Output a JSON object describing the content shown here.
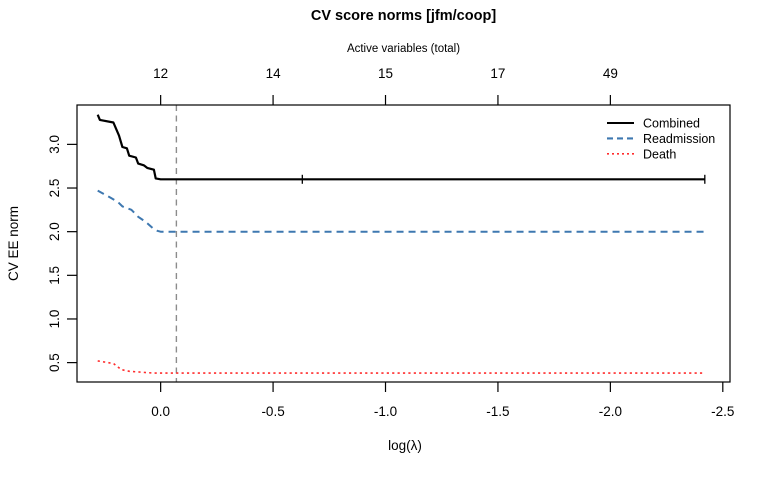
{
  "window": {
    "type": "r-plot-figure"
  },
  "chart_data": {
    "type": "line",
    "title": "CV score norms  [jfm/coop]",
    "xlabel": "log(λ)",
    "ylabel": "CV EE norm",
    "top_axis": {
      "label": "Active variables (total)",
      "ticks": [
        {
          "x": 0.0,
          "label": "12"
        },
        {
          "x": -0.5,
          "label": "14"
        },
        {
          "x": -1.0,
          "label": "15"
        },
        {
          "x": -1.5,
          "label": "17"
        },
        {
          "x": -2.0,
          "label": "49"
        }
      ]
    },
    "x_ticks": [
      {
        "x": 0.0,
        "label": "0.0"
      },
      {
        "x": -0.5,
        "label": "-0.5"
      },
      {
        "x": -1.0,
        "label": "-1.0"
      },
      {
        "x": -1.5,
        "label": "-1.5"
      },
      {
        "x": -2.0,
        "label": "-2.0"
      },
      {
        "x": -2.5,
        "label": "-2.5"
      }
    ],
    "y_ticks": [
      {
        "y": 0.5,
        "label": "0.5"
      },
      {
        "y": 1.0,
        "label": "1.0"
      },
      {
        "y": 1.5,
        "label": "1.5"
      },
      {
        "y": 2.0,
        "label": "2.0"
      },
      {
        "y": 2.5,
        "label": "2.5"
      },
      {
        "y": 3.0,
        "label": "3.0"
      }
    ],
    "xlim": [
      0.372,
      -2.532
    ],
    "ylim": [
      0.278,
      3.451
    ],
    "x_axis_reversed": true,
    "grid": false,
    "series": [
      {
        "name": "Combined",
        "color": "#000000",
        "style": "solid",
        "width": 2.2,
        "points": [
          [
            0.28,
            3.34
          ],
          [
            0.27,
            3.28
          ],
          [
            0.21,
            3.25
          ],
          [
            0.185,
            3.1
          ],
          [
            0.17,
            2.97
          ],
          [
            0.15,
            2.955
          ],
          [
            0.14,
            2.87
          ],
          [
            0.11,
            2.85
          ],
          [
            0.1,
            2.78
          ],
          [
            0.075,
            2.76
          ],
          [
            0.06,
            2.73
          ],
          [
            0.03,
            2.71
          ],
          [
            0.022,
            2.61
          ],
          [
            0.0,
            2.6
          ],
          [
            -2.42,
            2.6
          ]
        ]
      },
      {
        "name": "Readmission",
        "color": "#3e78b0",
        "style": "dashed",
        "width": 2.0,
        "points": [
          [
            0.28,
            2.47
          ],
          [
            0.23,
            2.4
          ],
          [
            0.19,
            2.34
          ],
          [
            0.17,
            2.29
          ],
          [
            0.13,
            2.25
          ],
          [
            0.1,
            2.17
          ],
          [
            0.065,
            2.11
          ],
          [
            0.035,
            2.04
          ],
          [
            0.015,
            2.01
          ],
          [
            0.0,
            2.0
          ],
          [
            -2.42,
            2.0
          ]
        ]
      },
      {
        "name": "Death",
        "color": "#ff2d2d",
        "style": "dotted",
        "width": 1.6,
        "points": [
          [
            0.28,
            0.52
          ],
          [
            0.21,
            0.49
          ],
          [
            0.175,
            0.42
          ],
          [
            0.14,
            0.4
          ],
          [
            0.03,
            0.38
          ],
          [
            -2.42,
            0.38
          ]
        ]
      }
    ],
    "markers": [
      {
        "series": "Combined",
        "shape": "vertical-tick",
        "x": -0.63,
        "y": 2.6
      },
      {
        "series": "Combined",
        "shape": "vertical-tick",
        "x": -2.42,
        "y": 2.6
      }
    ],
    "vline": {
      "x": -0.07,
      "color": "#8c8c8c",
      "style": "dashed"
    },
    "legend": {
      "position": "top-right",
      "border": false,
      "entries": [
        {
          "label": "Combined",
          "color": "#000000",
          "style": "solid"
        },
        {
          "label": "Readmission",
          "color": "#3e78b0",
          "style": "dashed"
        },
        {
          "label": "Death",
          "color": "#ff2d2d",
          "style": "dotted"
        }
      ]
    }
  }
}
